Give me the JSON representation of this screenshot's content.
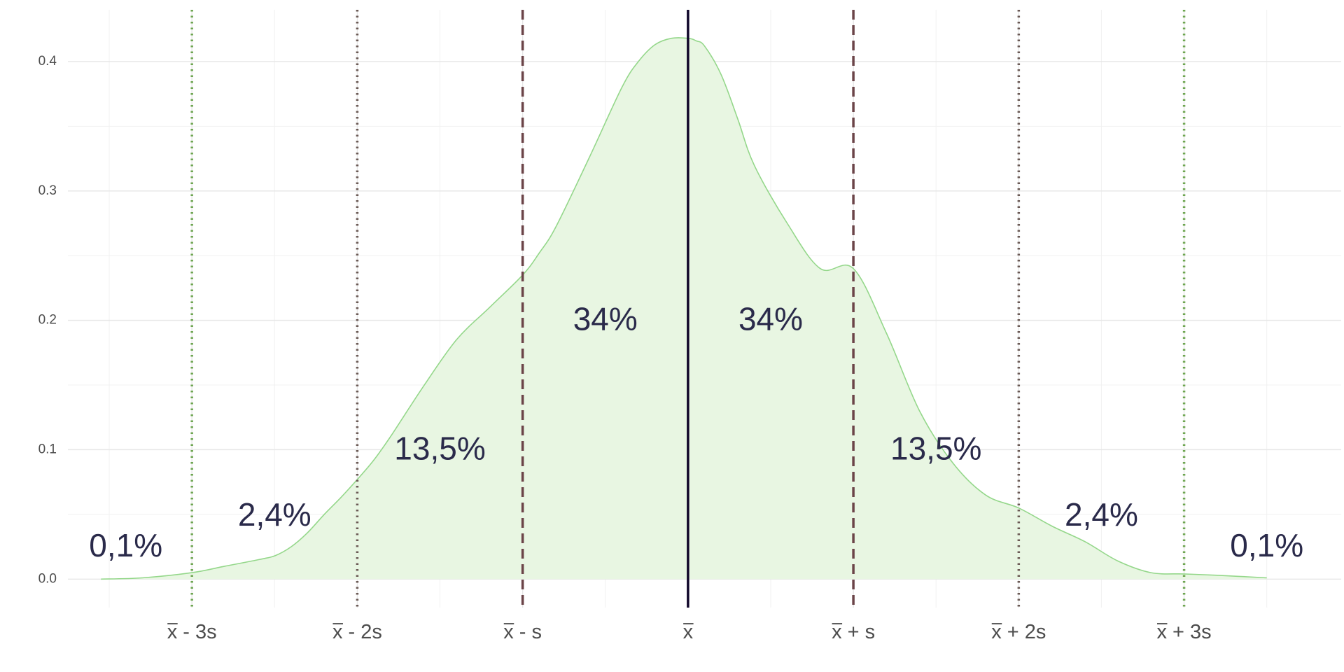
{
  "chart_data": {
    "type": "area",
    "title": "",
    "xlabel": "",
    "ylabel": "",
    "grid": true,
    "legend": "none",
    "xlim": [
      -3.75,
      3.95
    ],
    "ylim": [
      -0.022,
      0.44
    ],
    "y_ticks": [
      {
        "value": 0.0,
        "label": "0.0"
      },
      {
        "value": 0.1,
        "label": "0.1"
      },
      {
        "value": 0.2,
        "label": "0.2"
      },
      {
        "value": 0.3,
        "label": "0.3"
      },
      {
        "value": 0.4,
        "label": "0.4"
      }
    ],
    "x_ticks": [
      {
        "value": -3,
        "label": "x - 3s"
      },
      {
        "value": -2,
        "label": "x - 2s"
      },
      {
        "value": -1,
        "label": "x - s"
      },
      {
        "value": 0,
        "label": "x"
      },
      {
        "value": 1,
        "label": "x + s"
      },
      {
        "value": 2,
        "label": "x + 2s"
      },
      {
        "value": 3,
        "label": "x + 3s"
      }
    ],
    "density_curve": {
      "x": [
        -3.55,
        -3.3,
        -3.0,
        -2.8,
        -2.6,
        -2.5,
        -2.4,
        -2.3,
        -2.2,
        -2.1,
        -2.0,
        -1.9,
        -1.8,
        -1.6,
        -1.4,
        -1.2,
        -1.0,
        -0.9,
        -0.8,
        -0.6,
        -0.4,
        -0.3,
        -0.2,
        -0.1,
        0.0,
        0.05,
        0.1,
        0.2,
        0.3,
        0.4,
        0.6,
        0.8,
        1.0,
        1.2,
        1.4,
        1.6,
        1.8,
        2.0,
        2.2,
        2.4,
        2.6,
        2.8,
        3.0,
        3.2,
        3.5
      ],
      "y": [
        0.0,
        0.001,
        0.005,
        0.01,
        0.015,
        0.018,
        0.025,
        0.036,
        0.05,
        0.063,
        0.077,
        0.092,
        0.11,
        0.149,
        0.185,
        0.21,
        0.235,
        0.252,
        0.272,
        0.325,
        0.38,
        0.4,
        0.413,
        0.418,
        0.418,
        0.416,
        0.412,
        0.39,
        0.356,
        0.32,
        0.275,
        0.24,
        0.24,
        0.19,
        0.13,
        0.09,
        0.065,
        0.055,
        0.041,
        0.029,
        0.014,
        0.005,
        0.004,
        0.003,
        0.001
      ],
      "color": "#94d78a",
      "fill": "#e8f6e2"
    },
    "reference_lines": [
      {
        "x": -3,
        "style": "dotted",
        "color": "#6ea651"
      },
      {
        "x": -2,
        "style": "dotted",
        "color": "#6b5a55"
      },
      {
        "x": -1,
        "style": "dashed",
        "color": "#6b4448"
      },
      {
        "x": 0,
        "style": "solid",
        "color": "#10062a"
      },
      {
        "x": 1,
        "style": "dashed",
        "color": "#6b4448"
      },
      {
        "x": 2,
        "style": "dotted",
        "color": "#6b5a55"
      },
      {
        "x": 3,
        "style": "dotted",
        "color": "#6ea651"
      }
    ],
    "annotations": [
      {
        "label": "0,1%",
        "x": -3.4,
        "y": 0.024
      },
      {
        "label": "2,4%",
        "x": -2.5,
        "y": 0.048
      },
      {
        "label": "13,5%",
        "x": -1.5,
        "y": 0.099
      },
      {
        "label": "34%",
        "x": -0.5,
        "y": 0.199
      },
      {
        "label": "34%",
        "x": 0.5,
        "y": 0.199
      },
      {
        "label": "13,5%",
        "x": 1.5,
        "y": 0.099
      },
      {
        "label": "2,4%",
        "x": 2.5,
        "y": 0.048
      },
      {
        "label": "0,1%",
        "x": 3.5,
        "y": 0.024
      }
    ]
  }
}
